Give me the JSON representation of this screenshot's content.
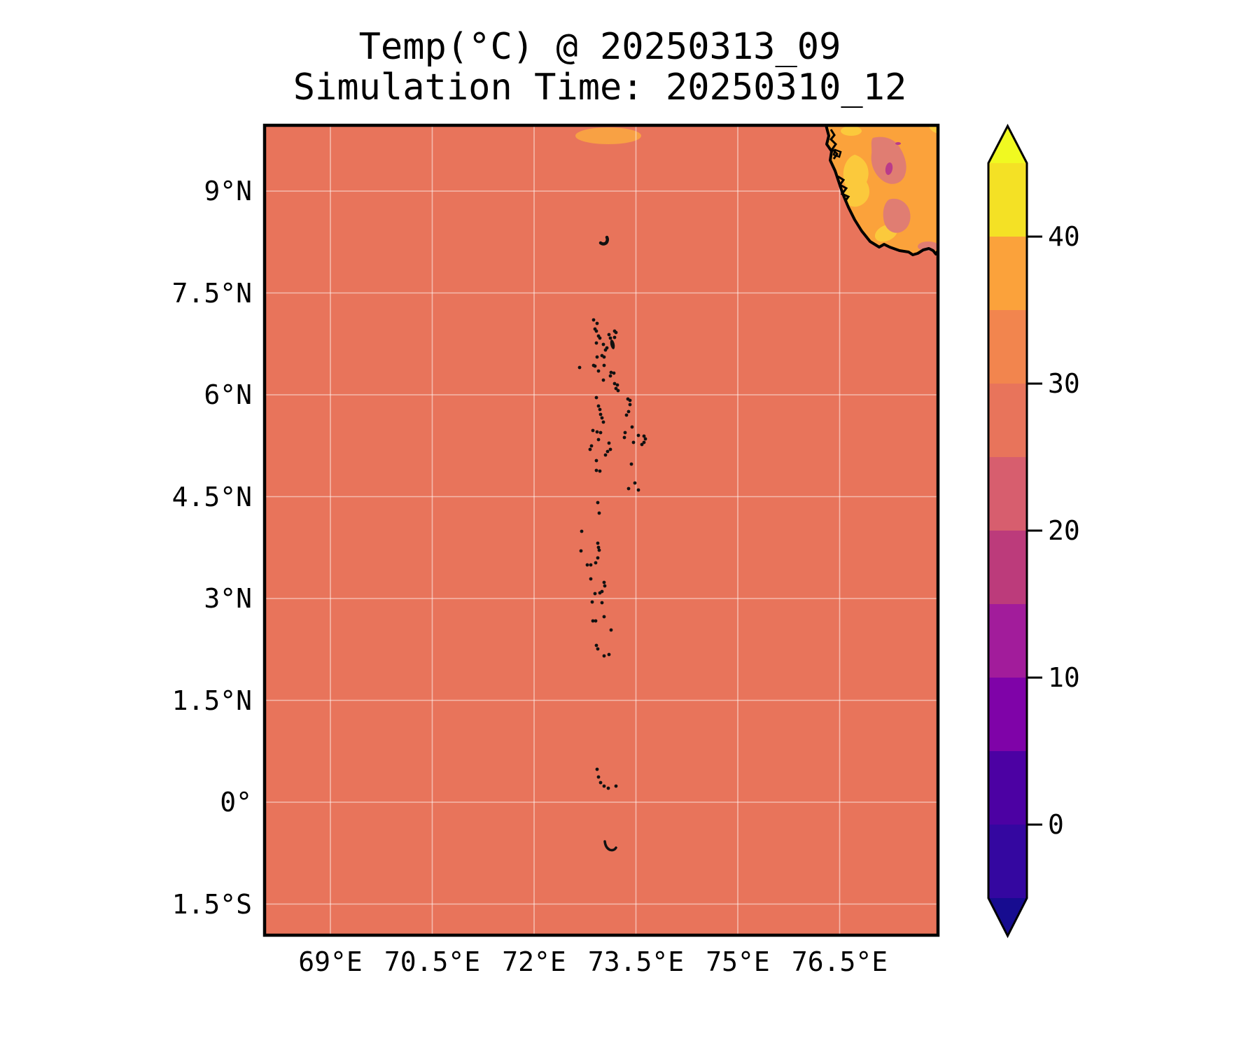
{
  "title": {
    "line1": "Temp(°C) @ 20250313_09",
    "line2": "Simulation Time: 20250310_12"
  },
  "chart_data": {
    "type": "heatmap",
    "title": "Temp(°C) @ 20250313_09",
    "subtitle": "Simulation Time: 20250310_12",
    "variable": "Temperature (°C)",
    "valid_time": "20250313_09",
    "simulation_time": "20250310_12",
    "grid": true,
    "x_axis": {
      "tick_labels": [
        "69°E",
        "70.5°E",
        "72°E",
        "73.5°E",
        "75°E",
        "76.5°E"
      ],
      "tick_lons": [
        69,
        70.5,
        72,
        73.5,
        75,
        76.5
      ],
      "range_lon": [
        68.0,
        77.95
      ]
    },
    "y_axis": {
      "tick_labels": [
        "9°N",
        "7.5°N",
        "6°N",
        "4.5°N",
        "3°N",
        "1.5°N",
        "0°",
        "1.5°S"
      ],
      "tick_lats": [
        9,
        7.5,
        6,
        4.5,
        3,
        1.5,
        0,
        -1.5
      ],
      "range_lat": [
        -1.95,
        9.97
      ]
    },
    "colorbar": {
      "ticks": [
        40,
        30,
        20,
        10,
        0
      ],
      "range": [
        -5,
        45
      ],
      "extend": "both",
      "over_color": "#F0F921",
      "under_color": "#170C90",
      "segments": [
        {
          "from": 40,
          "to": 45,
          "color": "#F4E125"
        },
        {
          "from": 35,
          "to": 40,
          "color": "#FBA23B"
        },
        {
          "from": 30,
          "to": 35,
          "color": "#F2854E"
        },
        {
          "from": 25,
          "to": 30,
          "color": "#E8745B"
        },
        {
          "from": 20,
          "to": 25,
          "color": "#D75E6E"
        },
        {
          "from": 15,
          "to": 20,
          "color": "#BC3B7B"
        },
        {
          "from": 10,
          "to": 15,
          "color": "#A21C9B"
        },
        {
          "from": 5,
          "to": 10,
          "color": "#7F03A8"
        },
        {
          "from": 0,
          "to": 5,
          "color": "#4C01A3"
        },
        {
          "from": -5,
          "to": 0,
          "color": "#3407A0"
        }
      ]
    },
    "regions": {
      "ocean": {
        "name": "Indian Ocean (uniform field)",
        "band_c": "25–30",
        "color": "#E8745B"
      },
      "land_base": {
        "name": "SW India coast (land)",
        "band_c": "35–40",
        "color": "#FBA23B"
      },
      "hot_patches": {
        "name": "warm inland patches",
        "band_c": "40–45",
        "color": "#FBC93C"
      },
      "cool_patches": {
        "name": "cooler inland patches",
        "band_c": "20–25",
        "color": "#E07D72"
      },
      "cold_spot": {
        "name": "coolest inland spot",
        "band_c": "10–15",
        "color": "#BA3B8A"
      },
      "top_warm_blob": {
        "name": "warm blob at north boundary",
        "band_c": "30–35",
        "color": "#F8A144"
      },
      "coastline_color": "#000000",
      "grid_color": "rgba(255,255,255,0.5)",
      "island_color": "#111111"
    },
    "islands": {
      "name": "Maldives / Lakshadweep island specks",
      "dots": [
        [
          828,
          525
        ],
        [
          848,
          457
        ],
        [
          853,
          462
        ],
        [
          850,
          470
        ],
        [
          852,
          473
        ],
        [
          855,
          480
        ],
        [
          857,
          483
        ],
        [
          870,
          478
        ],
        [
          872,
          483
        ],
        [
          878,
          473
        ],
        [
          880,
          475
        ],
        [
          878,
          482
        ],
        [
          862,
          492
        ],
        [
          852,
          490
        ],
        [
          867,
          497
        ],
        [
          865,
          500
        ],
        [
          863,
          510
        ],
        [
          860,
          508
        ],
        [
          853,
          510
        ],
        [
          848,
          522
        ],
        [
          850,
          523
        ],
        [
          855,
          530
        ],
        [
          863,
          522
        ],
        [
          873,
          532
        ],
        [
          877,
          533
        ],
        [
          872,
          537
        ],
        [
          862,
          543
        ],
        [
          878,
          548
        ],
        [
          882,
          550
        ],
        [
          880,
          555
        ],
        [
          883,
          558
        ],
        [
          852,
          568
        ],
        [
          897,
          570
        ],
        [
          900,
          572
        ],
        [
          855,
          580
        ],
        [
          900,
          578
        ],
        [
          857,
          585
        ],
        [
          898,
          588
        ],
        [
          858,
          592
        ],
        [
          895,
          593
        ],
        [
          860,
          597
        ],
        [
          862,
          603
        ],
        [
          903,
          610
        ],
        [
          847,
          615
        ],
        [
          853,
          617
        ],
        [
          858,
          618
        ],
        [
          893,
          618
        ],
        [
          912,
          622
        ],
        [
          920,
          623
        ],
        [
          922,
          627
        ],
        [
          920,
          632
        ],
        [
          892,
          625
        ],
        [
          855,
          628
        ],
        [
          905,
          632
        ],
        [
          917,
          635
        ],
        [
          845,
          637
        ],
        [
          870,
          633
        ],
        [
          843,
          642
        ],
        [
          872,
          642
        ],
        [
          868,
          645
        ],
        [
          865,
          650
        ],
        [
          852,
          658
        ],
        [
          902,
          663
        ],
        [
          852,
          672
        ],
        [
          857,
          673
        ],
        [
          907,
          690
        ],
        [
          898,
          698
        ],
        [
          912,
          700
        ],
        [
          854,
          718
        ],
        [
          856,
          733
        ],
        [
          831,
          759
        ],
        [
          854,
          776
        ],
        [
          855,
          782
        ],
        [
          856,
          786
        ],
        [
          830,
          787
        ],
        [
          854,
          797
        ],
        [
          851,
          804
        ],
        [
          839,
          807
        ],
        [
          844,
          807
        ],
        [
          844,
          827
        ],
        [
          863,
          832
        ],
        [
          864,
          837
        ],
        [
          850,
          848
        ],
        [
          857,
          847
        ],
        [
          860,
          845
        ],
        [
          846,
          860
        ],
        [
          860,
          861
        ],
        [
          847,
          887
        ],
        [
          851,
          887
        ],
        [
          863,
          881
        ],
        [
          873,
          900
        ],
        [
          852,
          922
        ],
        [
          854,
          927
        ],
        [
          863,
          937
        ],
        [
          870,
          935
        ],
        [
          853,
          1099
        ],
        [
          855,
          1110
        ],
        [
          858,
          1118
        ],
        [
          863,
          1123
        ],
        [
          869,
          1126
        ],
        [
          880,
          1123
        ]
      ]
    }
  }
}
